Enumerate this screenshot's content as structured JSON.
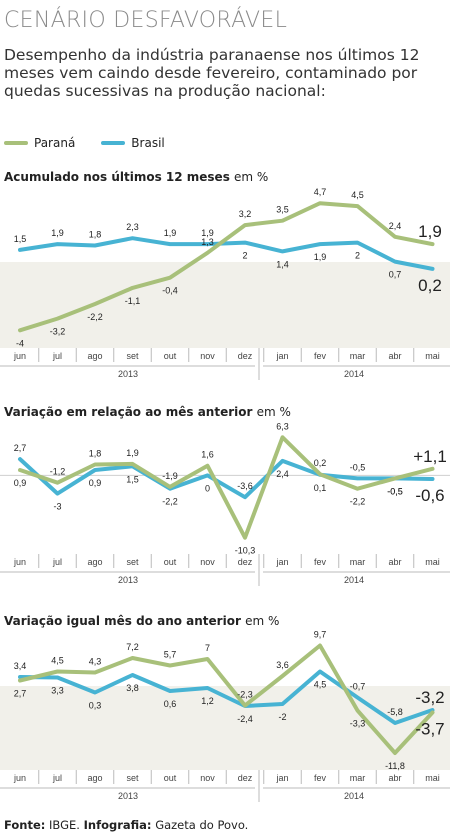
{
  "header": {
    "title": "CENÁRIO DESFAVORÁVEL",
    "subtitle": "Desempenho da indústria paranaense nos últimos 12 meses vem caindo desde fevereiro, contaminado por quedas sucessivas na produção nacional:"
  },
  "legend": [
    {
      "name": "Paraná",
      "color": "#a8c07a"
    },
    {
      "name": "Brasil",
      "color": "#47b3d3"
    }
  ],
  "months": [
    "jun",
    "jul",
    "ago",
    "set",
    "out",
    "nov",
    "dez",
    "jan",
    "fev",
    "mar",
    "abr",
    "mai"
  ],
  "years": [
    "2013",
    "2014"
  ],
  "source": {
    "label": "Fonte:",
    "value": "IBGE.",
    "credit_label": "Infografia:",
    "credit_value": "Gazeta do Povo."
  },
  "chart_data": [
    {
      "type": "line",
      "title": "Acumulado nos últimos 12 meses",
      "unit": "em %",
      "categories": [
        "jun",
        "jul",
        "ago",
        "set",
        "out",
        "nov",
        "dez",
        "jan",
        "fev",
        "mar",
        "abr",
        "mai"
      ],
      "series": [
        {
          "name": "Paraná",
          "values": [
            -4,
            -3.2,
            -2.2,
            -1.1,
            -0.4,
            1.3,
            3.2,
            3.5,
            4.7,
            4.5,
            2.4,
            1.9
          ],
          "labels": [
            "-4",
            "-3,2",
            "-2,2",
            "-1,1",
            "-0,4",
            "1,3",
            "3,2",
            "3,5",
            "4,7",
            "4,5",
            "2,4",
            "1,9"
          ]
        },
        {
          "name": "Brasil",
          "values": [
            1.5,
            1.9,
            1.8,
            2.3,
            1.9,
            1.9,
            2,
            1.4,
            1.9,
            2,
            0.7,
            0.2
          ],
          "labels": [
            "1,5",
            "1,9",
            "1,8",
            "2,3",
            "1,9",
            "1,9",
            "2",
            "1,4",
            "1,9",
            "2",
            "0,7",
            "0,2"
          ]
        }
      ],
      "ylim": [
        -4.8,
        5.6
      ]
    },
    {
      "type": "line",
      "title": "Variação em relação ao mês anterior",
      "unit": "em %",
      "categories": [
        "jun",
        "jul",
        "ago",
        "set",
        "out",
        "nov",
        "dez",
        "jan",
        "fev",
        "mar",
        "abr",
        "mai"
      ],
      "series": [
        {
          "name": "Paraná",
          "values": [
            0.9,
            -1.2,
            1.8,
            1.9,
            -1.9,
            1.6,
            -10.3,
            6.3,
            0.2,
            -2.2,
            -0.5,
            1.1
          ],
          "labels": [
            "0,9",
            "-1,2",
            "1,8",
            "1,9",
            "-1,9",
            "1,6",
            "-10,3",
            "6,3",
            "0,2",
            "-2,2",
            "-0,5",
            "+1,1"
          ]
        },
        {
          "name": "Brasil",
          "values": [
            2.7,
            -3,
            0.9,
            1.5,
            -2.2,
            0,
            -3.6,
            2.4,
            0.1,
            -0.5,
            -0.5,
            -0.6
          ],
          "labels": [
            "2,7",
            "-3",
            "0,9",
            "1,5",
            "-2,2",
            "0",
            "-3,6",
            "2,4",
            "0,1",
            "-0,5",
            "-0,5",
            "-0,6"
          ]
        }
      ],
      "ylim": [
        -12,
        8.5
      ]
    },
    {
      "type": "line",
      "title": "Variação igual mês do ano anterior",
      "unit": "em %",
      "categories": [
        "jun",
        "jul",
        "ago",
        "set",
        "out",
        "nov",
        "dez",
        "jan",
        "fev",
        "mar",
        "abr",
        "mai"
      ],
      "series": [
        {
          "name": "Paraná",
          "values": [
            2.7,
            4.5,
            4.3,
            7.2,
            5.7,
            7,
            -2.3,
            3.6,
            9.7,
            -3.3,
            -11.8,
            -3.7
          ],
          "labels": [
            "2,7",
            "4,5",
            "4,3",
            "7,2",
            "5,7",
            "7",
            "-2,3",
            "3,6",
            "9,7",
            "-3,3",
            "-11,8",
            "-3,7"
          ]
        },
        {
          "name": "Brasil",
          "values": [
            3.4,
            3.3,
            0.3,
            3.8,
            0.6,
            1.2,
            -2.4,
            -2,
            4.5,
            -0.7,
            -5.8,
            -3.2
          ],
          "labels": [
            "3,4",
            "3,3",
            "0,3",
            "3,8",
            "0,6",
            "1,2",
            "-2,4",
            "-2",
            "4,5",
            "-0,7",
            "-5,8",
            "-3,2"
          ]
        }
      ],
      "ylim": [
        -14,
        12
      ]
    }
  ]
}
